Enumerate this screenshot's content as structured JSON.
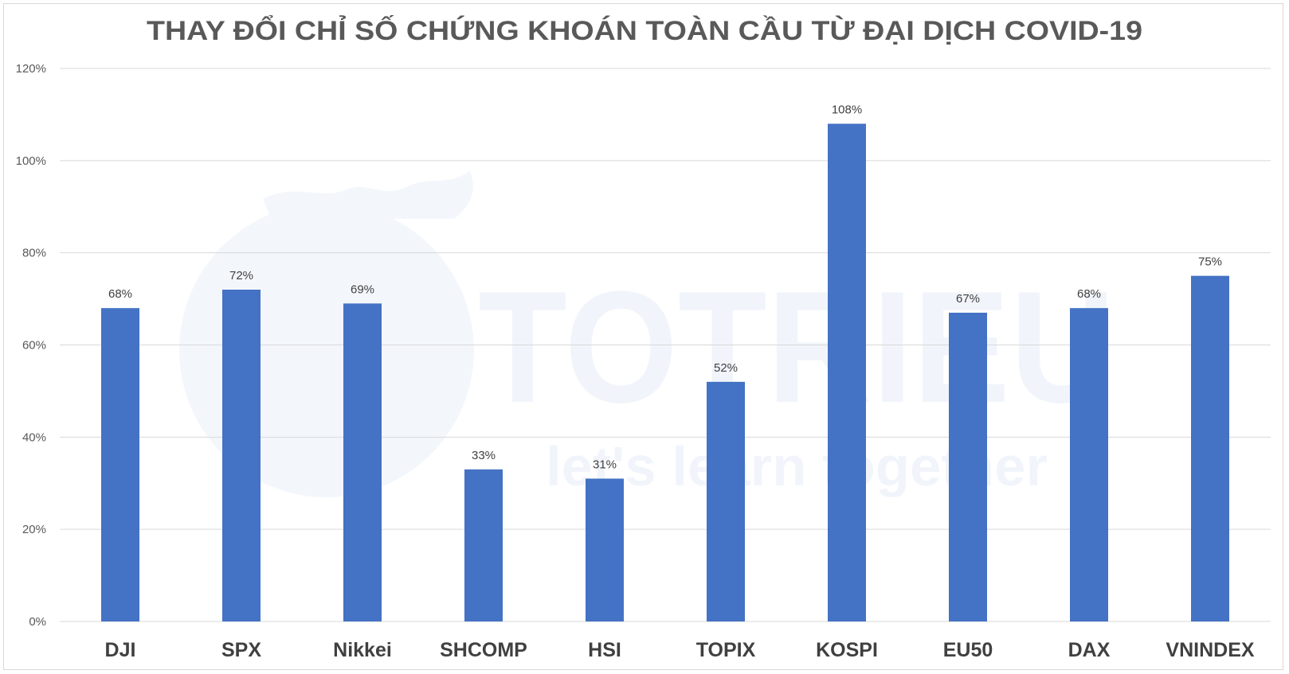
{
  "watermark": {
    "brand": "TOTRIEU",
    "tagline": "let's learn together"
  },
  "chart_data": {
    "type": "bar",
    "title": "THAY ĐỔI CHỈ SỐ CHỨNG KHOÁN TOÀN CẦU TỪ ĐẠI DỊCH COVID-19",
    "xlabel": "",
    "ylabel": "",
    "categories": [
      "DJI",
      "SPX",
      "Nikkei",
      "SHCOMP",
      "HSI",
      "TOPIX",
      "KOSPI",
      "EU50",
      "DAX",
      "VNINDEX"
    ],
    "values": [
      68,
      72,
      69,
      33,
      31,
      52,
      108,
      67,
      68,
      75
    ],
    "value_labels": [
      "68%",
      "72%",
      "69%",
      "33%",
      "31%",
      "52%",
      "108%",
      "67%",
      "68%",
      "75%"
    ],
    "ylim": [
      0,
      120
    ],
    "yticks": [
      0,
      20,
      40,
      60,
      80,
      100,
      120
    ],
    "ytick_labels": [
      "0%",
      "20%",
      "40%",
      "60%",
      "80%",
      "100%",
      "120%"
    ],
    "bar_color": "#4472c4",
    "grid": true,
    "legend": "none"
  }
}
